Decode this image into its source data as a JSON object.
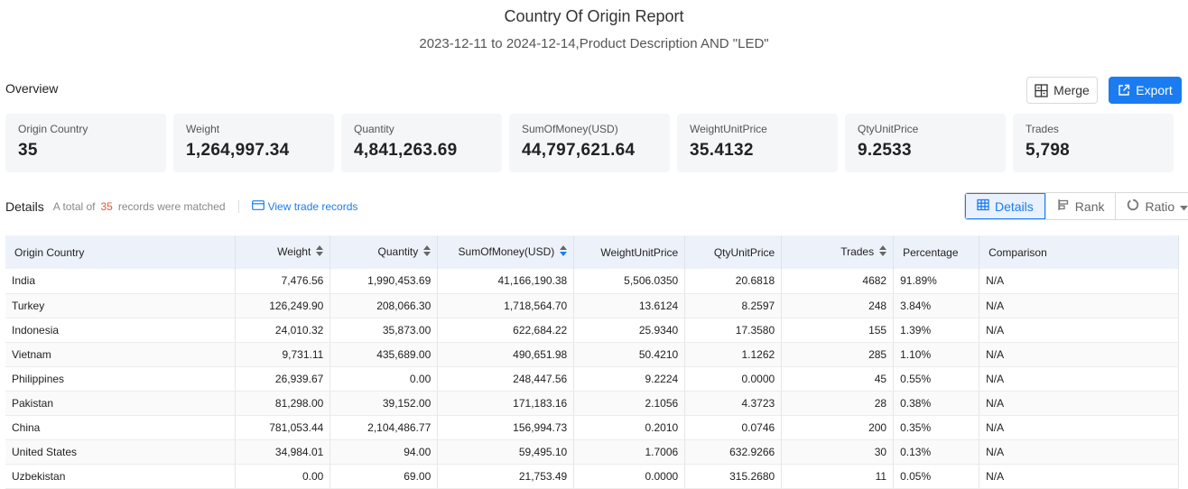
{
  "report": {
    "title": "Country Of Origin Report",
    "subtitle": "2023-12-11 to 2024-12-14,Product Description AND \"LED\""
  },
  "overview": {
    "label": "Overview",
    "merge_label": "Merge",
    "export_label": "Export",
    "cards": [
      {
        "label": "Origin Country",
        "value": "35"
      },
      {
        "label": "Weight",
        "value": "1,264,997.34"
      },
      {
        "label": "Quantity",
        "value": "4,841,263.69"
      },
      {
        "label": "SumOfMoney(USD)",
        "value": "44,797,621.64"
      },
      {
        "label": "WeightUnitPrice",
        "value": "35.4132"
      },
      {
        "label": "QtyUnitPrice",
        "value": "9.2533"
      },
      {
        "label": "Trades",
        "value": "5,798"
      }
    ]
  },
  "details": {
    "title": "Details",
    "total_prefix": "A total of",
    "total_count": "35",
    "total_suffix": "records were matched",
    "view_link": "View trade records",
    "tabs": {
      "details": "Details",
      "rank": "Rank",
      "ratio": "Ratio"
    }
  },
  "table": {
    "headers": {
      "country": "Origin Country",
      "weight": "Weight",
      "quantity": "Quantity",
      "money": "SumOfMoney(USD)",
      "wup": "WeightUnitPrice",
      "qup": "QtyUnitPrice",
      "trades": "Trades",
      "pct": "Percentage",
      "cmp": "Comparison"
    },
    "rows": [
      [
        "India",
        "7,476.56",
        "1,990,453.69",
        "41,166,190.38",
        "5,506.0350",
        "20.6818",
        "4682",
        "91.89%",
        "N/A"
      ],
      [
        "Turkey",
        "126,249.90",
        "208,066.30",
        "1,718,564.70",
        "13.6124",
        "8.2597",
        "248",
        "3.84%",
        "N/A"
      ],
      [
        "Indonesia",
        "24,010.32",
        "35,873.00",
        "622,684.22",
        "25.9340",
        "17.3580",
        "155",
        "1.39%",
        "N/A"
      ],
      [
        "Vietnam",
        "9,731.11",
        "435,689.00",
        "490,651.98",
        "50.4210",
        "1.1262",
        "285",
        "1.10%",
        "N/A"
      ],
      [
        "Philippines",
        "26,939.67",
        "0.00",
        "248,447.56",
        "9.2224",
        "0.0000",
        "45",
        "0.55%",
        "N/A"
      ],
      [
        "Pakistan",
        "81,298.00",
        "39,152.00",
        "171,183.16",
        "2.1056",
        "4.3723",
        "28",
        "0.38%",
        "N/A"
      ],
      [
        "China",
        "781,053.44",
        "2,104,486.77",
        "156,994.73",
        "0.2010",
        "0.0746",
        "200",
        "0.35%",
        "N/A"
      ],
      [
        "United States",
        "34,984.01",
        "94.00",
        "59,495.10",
        "1.7006",
        "632.9266",
        "30",
        "0.13%",
        "N/A"
      ],
      [
        "Uzbekistan",
        "0.00",
        "69.00",
        "21,753.49",
        "0.0000",
        "315.2680",
        "11",
        "0.05%",
        "N/A"
      ]
    ]
  },
  "colors": {
    "accent": "#1a7cf0",
    "count": "#e05a2b",
    "header_bg": "#edf2fa",
    "card_bg": "#f5f6f8"
  },
  "icons": {
    "merge": "merge-icon",
    "export": "export-icon",
    "view": "credit-card-icon",
    "details": "table-grid-icon",
    "rank": "bar-rank-icon",
    "ratio": "ring-ratio-icon",
    "sort": "sort-arrows-icon",
    "dropdown": "caret-down-icon"
  }
}
